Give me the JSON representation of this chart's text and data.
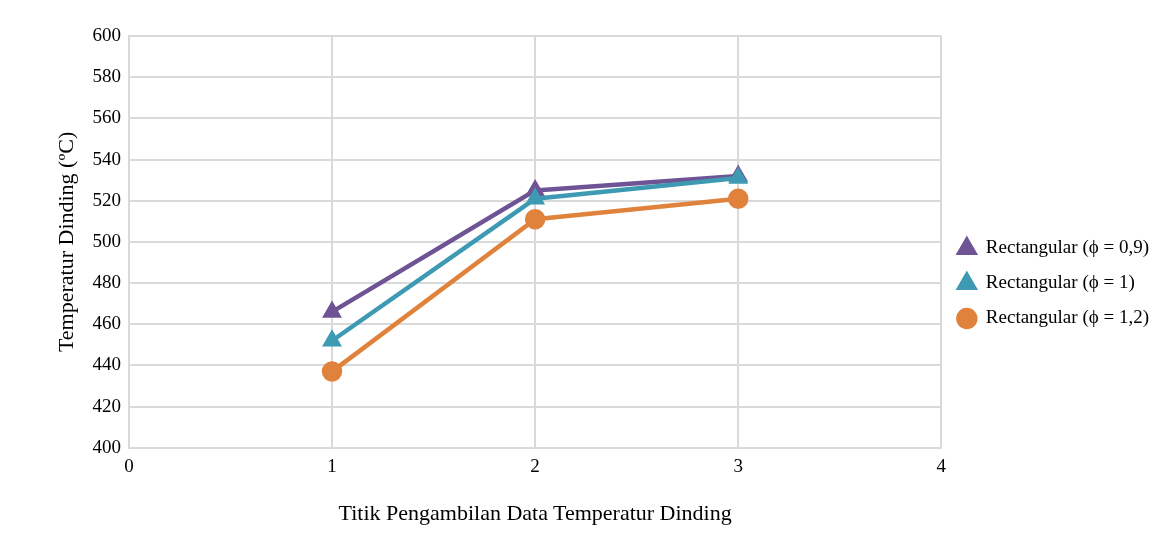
{
  "chart_data": {
    "type": "line",
    "xlabel": "Titik Pengambilan Data Temperatur Dinding",
    "ylabel": "Temperatur Dinding (ºC)",
    "x": [
      1,
      2,
      3
    ],
    "xlim": [
      0,
      4
    ],
    "xticks": [
      0,
      1,
      2,
      3,
      4
    ],
    "ylim": [
      400,
      600
    ],
    "yticks": [
      400,
      420,
      440,
      460,
      480,
      500,
      520,
      540,
      560,
      580,
      600
    ],
    "grid": true,
    "legend": "right",
    "series": [
      {
        "name": "Rectangular (ϕ = 0,9)",
        "color": "#6f5495",
        "marker": "triangle",
        "values": [
          466,
          525,
          532
        ]
      },
      {
        "name": "Rectangular (ϕ = 1)",
        "color": "#3d9ab2",
        "marker": "triangle",
        "values": [
          452,
          521,
          531
        ]
      },
      {
        "name": "Rectangular (ϕ = 1,2)",
        "color": "#e0823b",
        "marker": "circle",
        "values": [
          437,
          511,
          521
        ]
      }
    ]
  }
}
